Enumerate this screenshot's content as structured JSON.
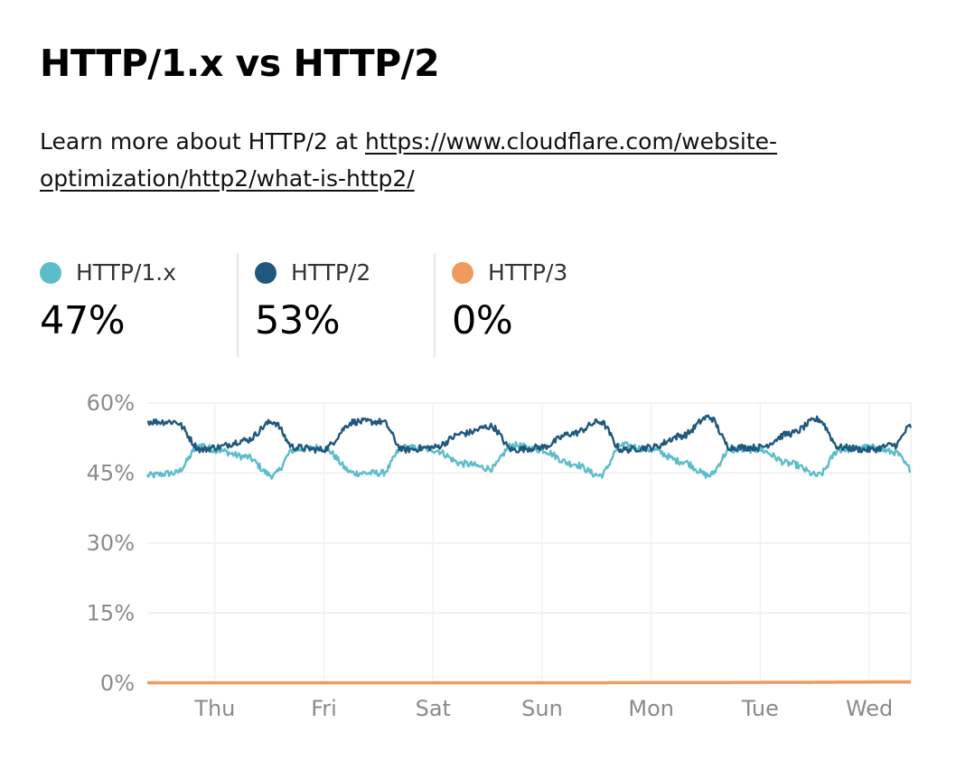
{
  "title": "HTTP/1.x vs HTTP/2",
  "description": {
    "prefix": "Learn more about HTTP/2 at ",
    "link_text": "https://www.cloudflare.com/website-optimization/http2/what-is-http2/"
  },
  "legend": [
    {
      "label": "HTTP/1.x",
      "value": "47%",
      "color": "#5dbccb"
    },
    {
      "label": "HTTP/2",
      "value": "53%",
      "color": "#1f587c"
    },
    {
      "label": "HTTP/3",
      "value": "0%",
      "color": "#ef9a5f"
    }
  ],
  "chart_data": {
    "type": "line",
    "ylim": [
      0,
      60
    ],
    "yticks": [
      "60%",
      "45%",
      "30%",
      "15%",
      "0%"
    ],
    "ytick_values": [
      60,
      45,
      30,
      15,
      0
    ],
    "xticks": [
      "Thu",
      "Fri",
      "Sat",
      "Sun",
      "Mon",
      "Tue",
      "Wed"
    ],
    "xlim_days": [
      0,
      7
    ],
    "xtick_positions_days": [
      0.62,
      1.62,
      2.62,
      3.62,
      4.62,
      5.62,
      6.62
    ],
    "grid": true,
    "colors": {
      "HTTP/1.x": "#5dbccb",
      "HTTP/2": "#1f587c",
      "HTTP/3": "#ef9a5f"
    },
    "series": [
      {
        "name": "HTTP/1.x",
        "x": [
          0,
          0.25,
          0.5,
          0.62,
          0.9,
          1.15,
          1.35,
          1.6,
          1.9,
          2.15,
          2.35,
          2.62,
          2.9,
          3.15,
          3.35,
          3.6,
          3.9,
          4.15,
          4.35,
          4.62,
          4.9,
          5.15,
          5.35,
          5.6,
          5.9,
          6.15,
          6.35,
          6.62,
          6.85,
          7.0
        ],
        "values": [
          44.5,
          45,
          51,
          50,
          48.5,
          44.5,
          50,
          50.5,
          45,
          45,
          50.5,
          50,
          47,
          46,
          51,
          50,
          47,
          44.5,
          51,
          50,
          47.5,
          44.5,
          50,
          50,
          47,
          44.5,
          50,
          50.5,
          49.5,
          46
        ]
      },
      {
        "name": "HTTP/2",
        "x": [
          0,
          0.25,
          0.5,
          0.62,
          0.9,
          1.15,
          1.35,
          1.6,
          1.9,
          2.15,
          2.35,
          2.62,
          2.9,
          3.15,
          3.35,
          3.6,
          3.9,
          4.15,
          4.35,
          4.62,
          4.9,
          5.15,
          5.35,
          5.6,
          5.9,
          6.15,
          6.35,
          6.62,
          6.85,
          7.0
        ],
        "values": [
          56,
          56,
          50,
          50.5,
          52,
          56,
          50.5,
          50,
          56,
          56,
          50,
          50.5,
          53.5,
          55,
          50,
          50.5,
          53.5,
          56,
          50,
          50.5,
          53,
          57,
          50.5,
          50.5,
          53.5,
          56.5,
          50.5,
          50,
          51,
          55
        ]
      },
      {
        "name": "HTTP/3",
        "x": [
          0,
          1,
          2,
          3,
          4,
          5,
          6,
          7
        ],
        "values": [
          0.1,
          0.1,
          0.1,
          0.1,
          0.1,
          0.15,
          0.2,
          0.3
        ]
      }
    ]
  }
}
